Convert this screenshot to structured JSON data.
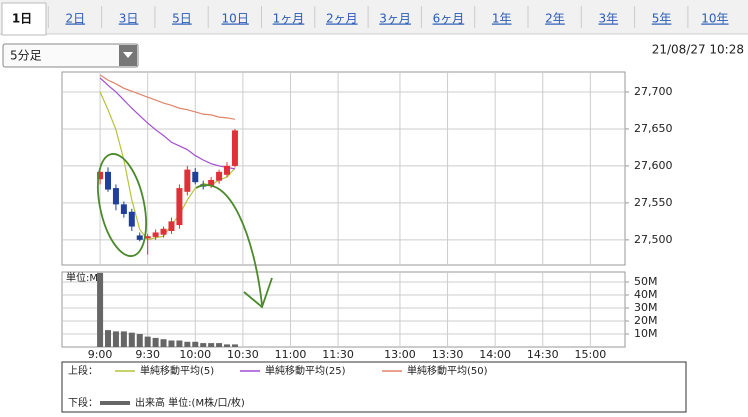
{
  "tabs": [
    "1日",
    "2日",
    "3日",
    "5日",
    "10日",
    "1ヶ月",
    "2ヶ月",
    "3ヶ月",
    "6ヶ月",
    "1年",
    "2年",
    "3年",
    "5年",
    "10年"
  ],
  "dropdown": "5分足",
  "timestamp": "21/08/27 10:28",
  "legend": {
    "upper": "上段：",
    "lower": "下段："
  },
  "chart_data": [
    {
      "type": "candlestick",
      "x": [
        540,
        545,
        550,
        555,
        560,
        565,
        570,
        575,
        580,
        585,
        590,
        595,
        600,
        605,
        610,
        615,
        620,
        625
      ],
      "open": [
        27582,
        27592,
        27570,
        27548,
        27538,
        27506,
        27502,
        27504,
        27507,
        27512,
        27520,
        27565,
        27592,
        27575,
        27573,
        27580,
        27588,
        27600
      ],
      "high": [
        27598,
        27598,
        27575,
        27552,
        27542,
        27510,
        27508,
        27514,
        27518,
        27530,
        27575,
        27600,
        27597,
        27580,
        27585,
        27595,
        27605,
        27650
      ],
      "low": [
        27575,
        27565,
        27540,
        27530,
        27512,
        27498,
        27480,
        27500,
        27503,
        27508,
        27515,
        27560,
        27575,
        27568,
        27570,
        27576,
        27585,
        27598
      ],
      "close": [
        27592,
        27568,
        27548,
        27535,
        27518,
        27500,
        27505,
        27510,
        27515,
        27525,
        27570,
        27595,
        27578,
        27572,
        27581,
        27592,
        27600,
        27648
      ],
      "up_color": "#e0303a",
      "down_color": "#203f9c",
      "series": [
        {
          "name": "単純移動平均(5)",
          "color": "#b5c43a",
          "values": [
            27700,
            27676,
            27649,
            27608,
            27554,
            27514,
            27500,
            27503,
            27505,
            27520,
            27534,
            27554,
            27570,
            27576,
            27574,
            27581,
            27585,
            27597
          ]
        },
        {
          "name": "単純移動平均(25)",
          "color": "#a24fd2",
          "values": [
            27719,
            27709,
            27700,
            27689,
            27678,
            27668,
            27658,
            27649,
            27641,
            27632,
            27627,
            27622,
            27614,
            27608,
            27603,
            27600,
            27598,
            27596
          ]
        },
        {
          "name": "単純移動平均(50)",
          "color": "#e0846a",
          "values": [
            27723,
            27716,
            27711,
            27705,
            27701,
            27697,
            27693,
            27689,
            27685,
            27682,
            27678,
            27676,
            27673,
            27670,
            27669,
            27666,
            27665,
            27663
          ]
        }
      ],
      "xlim": [
        516,
        923
      ],
      "xticks": [
        {
          "value": 540,
          "label": "9:00"
        },
        {
          "value": 570,
          "label": "9:30"
        },
        {
          "value": 600,
          "label": "10:00"
        },
        {
          "value": 630,
          "label": "10:30"
        },
        {
          "value": 660,
          "label": "11:00"
        },
        {
          "value": 690,
          "label": "11:30"
        },
        {
          "value": 780,
          "label": "13:00"
        },
        {
          "value": 810,
          "label": "13:30"
        },
        {
          "value": 840,
          "label": "14:00"
        },
        {
          "value": 870,
          "label": "14:30"
        },
        {
          "value": 900,
          "label": "15:00"
        }
      ],
      "ylim": [
        27466,
        27727
      ],
      "yticks": [
        {
          "value": 27500,
          "label": "27,500"
        },
        {
          "value": 27550,
          "label": "27,550"
        },
        {
          "value": 27600,
          "label": "27,600"
        },
        {
          "value": 27650,
          "label": "27,650"
        },
        {
          "value": 27700,
          "label": "27,700"
        }
      ],
      "grid": true
    },
    {
      "type": "bar",
      "unit_label": "単位:M",
      "x": [
        540,
        545,
        550,
        555,
        560,
        565,
        570,
        575,
        580,
        585,
        590,
        595,
        600,
        605,
        610,
        615,
        620,
        625
      ],
      "series": [
        {
          "name": "出来高 単位:(M株/口/枚)",
          "color": "#666666",
          "values": [
            57,
            13,
            12,
            12,
            11,
            10,
            8,
            7,
            6,
            5,
            5,
            4,
            4,
            3,
            3,
            3,
            2,
            2
          ]
        }
      ],
      "xlim": [
        516,
        923
      ],
      "ylim": [
        0,
        57.7
      ],
      "yticks": [
        {
          "value": 10,
          "label": "10M"
        },
        {
          "value": 20,
          "label": "20M"
        },
        {
          "value": 30,
          "label": "30M"
        },
        {
          "value": 40,
          "label": "40M"
        },
        {
          "value": 50,
          "label": "50M"
        }
      ],
      "grid": true
    }
  ]
}
